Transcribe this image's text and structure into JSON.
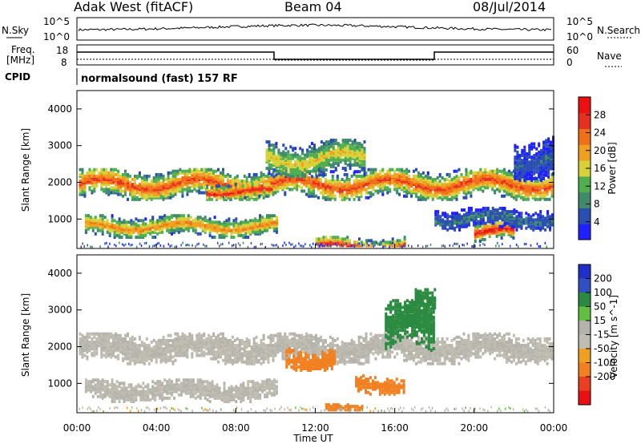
{
  "header": {
    "station": "Adak West (fitACF)",
    "beam": "Beam 04",
    "date": "08/Jul/2014"
  },
  "noise_panel": {
    "left_label": "N.Sky",
    "right_label": "N.Search",
    "left_ticks": [
      "10^5",
      "10^0"
    ],
    "right_ticks": [
      "10^5",
      "10^0"
    ]
  },
  "freq_panel": {
    "left_label_1": "Freq.",
    "left_label_2": "[MHz]",
    "left_ticks": [
      "18",
      "8"
    ],
    "right_label": "Nave",
    "right_ticks": [
      "60",
      "0"
    ]
  },
  "cpid": {
    "label": "CPID",
    "text": "normalsound (fast) 157 RF"
  },
  "xaxis": {
    "label": "Time UT",
    "ticks": [
      "00:00",
      "04:00",
      "08:00",
      "12:00",
      "16:00",
      "20:00",
      "00:00"
    ]
  },
  "colors": {
    "power_scale": [
      "#1f1fff",
      "#2a4fb0",
      "#3f8a6a",
      "#4fae50",
      "#d8d23a",
      "#f0a020",
      "#f07018",
      "#e83020",
      "#ee1010"
    ],
    "velocity_scale": [
      "#2030c8",
      "#3050c0",
      "#2a8a40",
      "#60c040",
      "#b4b4ac",
      "#c0bcb0",
      "#f0a020",
      "#f08020",
      "#e84020",
      "#e81010"
    ]
  },
  "chart_data": [
    {
      "type": "heatmap",
      "title": "Power",
      "ylabel": "Slant Range [km]",
      "xlabel": "Time UT",
      "xlim": [
        0,
        24
      ],
      "ylim": [
        200,
        4500
      ],
      "yticks": [
        "1000",
        "2000",
        "3000",
        "4000"
      ],
      "colorbar": {
        "label": "Power [dB]",
        "ticks": [
          "4",
          "8",
          "12",
          "16",
          "20",
          "24",
          "28"
        ],
        "range": [
          0,
          32
        ]
      },
      "bands": [
        {
          "t_start": 0.1,
          "t_end": 23.9,
          "range_center": 2000,
          "range_width": 420,
          "peak_db": 26
        },
        {
          "t_start": 0.4,
          "t_end": 10.0,
          "range_center": 850,
          "range_width": 300,
          "peak_db": 22
        },
        {
          "t_start": 6.5,
          "t_end": 9.8,
          "range_center": 1800,
          "range_width": 220,
          "peak_db": 29
        },
        {
          "t_start": 9.5,
          "t_end": 14.5,
          "range_center": 2700,
          "range_width": 500,
          "peak_db": 18
        },
        {
          "t_start": 12.0,
          "t_end": 16.5,
          "range_center": 300,
          "range_width": 250,
          "peak_db": 28
        },
        {
          "t_start": 20.0,
          "t_end": 22.0,
          "range_center": 700,
          "range_width": 260,
          "peak_db": 30
        },
        {
          "t_start": 18.0,
          "t_end": 24.0,
          "range_center": 1050,
          "range_width": 300,
          "peak_db": 8
        },
        {
          "t_start": 22.0,
          "t_end": 24.0,
          "range_center": 2700,
          "range_width": 600,
          "peak_db": 6
        }
      ]
    },
    {
      "type": "heatmap",
      "title": "Velocity",
      "ylabel": "Slant Range [km]",
      "xlabel": "Time UT",
      "xlim": [
        0,
        24
      ],
      "ylim": [
        200,
        4500
      ],
      "yticks": [
        "1000",
        "2000",
        "3000",
        "4000"
      ],
      "colorbar": {
        "label": "Velocity [m s^-1]",
        "ticks": [
          "200",
          "100",
          "50",
          "15",
          "-15",
          "-50",
          "-100",
          "-200"
        ]
      },
      "bands": [
        {
          "t_start": 0.1,
          "t_end": 23.9,
          "range_center": 2000,
          "range_width": 420,
          "velocity": 0
        },
        {
          "t_start": 0.4,
          "t_end": 10.0,
          "range_center": 850,
          "range_width": 300,
          "velocity": 0
        },
        {
          "t_start": 10.5,
          "t_end": 13.0,
          "range_center": 1700,
          "range_width": 300,
          "velocity": -60
        },
        {
          "t_start": 14.0,
          "t_end": 16.5,
          "range_center": 1000,
          "range_width": 250,
          "velocity": -70
        },
        {
          "t_start": 12.5,
          "t_end": 14.5,
          "range_center": 300,
          "range_width": 200,
          "velocity": -60
        },
        {
          "t_start": 15.5,
          "t_end": 18.0,
          "range_center": 2600,
          "range_width": 700,
          "velocity": 40
        },
        {
          "t_start": 17.0,
          "t_end": 18.0,
          "range_center": 3400,
          "range_width": 300,
          "velocity": 60
        }
      ]
    }
  ]
}
